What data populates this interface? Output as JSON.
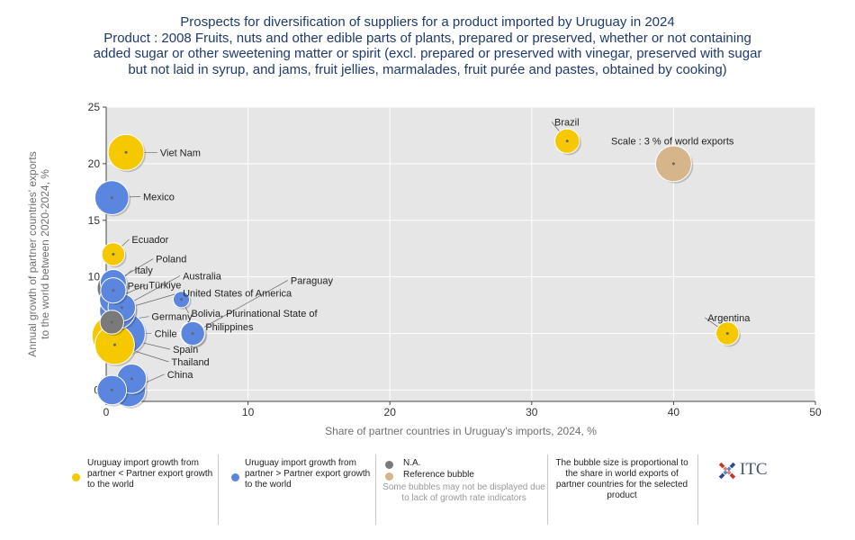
{
  "title_lines": [
    "Prospects for diversification of suppliers for a product imported by Uruguay in 2024",
    "Product : 2008 Fruits, nuts and other edible parts of plants, prepared or preserved, whether or not containing",
    "added sugar or other sweetening matter or spirit (excl. prepared or preserved with vinegar, preserved with sugar",
    "but not laid in syrup, and jams, fruit jellies, marmalades, fruit purée and pastes, obtained by cooking)"
  ],
  "colors": {
    "yellow": "#f5c800",
    "blue": "#5b86e0",
    "gray": "#7a7a7a",
    "reference": "#d6b58a",
    "plot_bg": "#e6e6e6",
    "grid": "#ffffff",
    "axis_label": "#707070"
  },
  "chart_data": {
    "type": "scatter",
    "xlabel": "Share of partner countries in Uruguay's imports, 2024, %",
    "ylabel": "Annual growth of partner countries' exports to the world between 2020-2024, %",
    "xlim": [
      0,
      50
    ],
    "ylim": [
      -1,
      25
    ],
    "x_ticks": [
      0,
      10,
      20,
      30,
      40,
      50
    ],
    "y_ticks": [
      0,
      5,
      10,
      15,
      20,
      25
    ],
    "grid": "on",
    "bubble_size_meaning": "share in world exports of partner countries for the selected product",
    "points": [
      {
        "name": "Viet Nam",
        "x": 1.4,
        "y": 21.0,
        "size": 3.0,
        "category": "yellow",
        "label": "Viet Nam",
        "label_x": 3.8,
        "label_y": 21.0
      },
      {
        "name": "Mexico",
        "x": 0.4,
        "y": 17.0,
        "size": 2.6,
        "category": "blue",
        "label": "Mexico",
        "label_x": 2.6,
        "label_y": 17.1
      },
      {
        "name": "Ecuador",
        "x": 0.5,
        "y": 12.0,
        "size": 0.9,
        "category": "yellow",
        "label": "Ecuador",
        "label_x": 1.8,
        "label_y": 13.3
      },
      {
        "name": "Poland",
        "x": 0.5,
        "y": 9.5,
        "size": 1.3,
        "category": "blue",
        "label": "Poland",
        "label_x": 3.5,
        "label_y": 11.6
      },
      {
        "name": "Italy",
        "x": 0.4,
        "y": 9.0,
        "size": 1.8,
        "category": "gray",
        "label": "Italy",
        "label_x": 2.0,
        "label_y": 10.6
      },
      {
        "name": "Peru",
        "x": 0.5,
        "y": 8.8,
        "size": 1.2,
        "category": "blue",
        "label": "Peru",
        "label_x": 1.5,
        "label_y": 9.2
      },
      {
        "name": "Türkiye",
        "x": 0.5,
        "y": 8.0,
        "size": 1.5,
        "category": "blue",
        "label": "Türkiye",
        "label_x": 3.0,
        "label_y": 9.3
      },
      {
        "name": "Australia",
        "x": 1.1,
        "y": 7.3,
        "size": 1.5,
        "category": "blue",
        "label": "Australia",
        "label_x": 5.4,
        "label_y": 10.1
      },
      {
        "name": "United States of America",
        "x": 0.8,
        "y": 7.0,
        "size": 3.0,
        "category": "blue",
        "label": "United States of America",
        "label_x": 5.4,
        "label_y": 8.6
      },
      {
        "name": "Paraguay",
        "x": 6.1,
        "y": 5.0,
        "size": 1.0,
        "category": "blue",
        "label": "Paraguay",
        "label_x": 13.0,
        "label_y": 9.7
      },
      {
        "name": "Bolivia, Plurinational State of",
        "x": 5.3,
        "y": 8.0,
        "size": 0.3,
        "category": "blue",
        "label": "Bolivia, Plurinational State of",
        "label_x": 6.0,
        "label_y": 6.8
      },
      {
        "name": "Germany",
        "x": 0.4,
        "y": 6.0,
        "size": 1.0,
        "category": "gray",
        "label": "Germany",
        "label_x": 3.2,
        "label_y": 6.5
      },
      {
        "name": "Philippines",
        "x": 6.1,
        "y": 5.0,
        "size": 1.2,
        "category": "blue",
        "label": "Philippines",
        "label_x": 7.0,
        "label_y": 5.6
      },
      {
        "name": "Chile",
        "x": 1.3,
        "y": 5.0,
        "size": 4.2,
        "category": "blue",
        "label": "Chile",
        "label_x": 3.4,
        "label_y": 5.0
      },
      {
        "name": "Spain",
        "x": 0.5,
        "y": 4.8,
        "size": 4.5,
        "category": "yellow",
        "label": "Spain",
        "label_x": 4.7,
        "label_y": 3.6
      },
      {
        "name": "Thailand",
        "x": 0.6,
        "y": 4.0,
        "size": 3.8,
        "category": "yellow",
        "label": "Thailand",
        "label_x": 4.6,
        "label_y": 2.5
      },
      {
        "name": "China",
        "x": 1.6,
        "y": 0.0,
        "size": 2.5,
        "category": "blue",
        "label": "China",
        "label_x": 4.3,
        "label_y": 1.4
      },
      {
        "name": "China-2",
        "x": 1.8,
        "y": 1.0,
        "size": 1.8,
        "category": "blue",
        "label": "",
        "label_x": 0,
        "label_y": 0
      },
      {
        "name": "Small-origin",
        "x": 0.4,
        "y": 0.0,
        "size": 1.8,
        "category": "blue",
        "label": "",
        "label_x": 0,
        "label_y": 0
      },
      {
        "name": "Brazil",
        "x": 32.5,
        "y": 22.0,
        "size": 1.1,
        "category": "yellow",
        "label": "Brazil",
        "label_x": 31.6,
        "label_y": 23.7
      },
      {
        "name": "Argentina",
        "x": 43.8,
        "y": 5.0,
        "size": 0.9,
        "category": "yellow",
        "label": "Argentina",
        "label_x": 42.4,
        "label_y": 6.4
      },
      {
        "name": "Reference",
        "x": 40.0,
        "y": 20.0,
        "size": 3.0,
        "category": "reference",
        "label": "",
        "label_x": 0,
        "label_y": 0
      }
    ],
    "annotations": [
      {
        "text": "Scale : 3 % of world exports",
        "x": 35.6,
        "y": 22.0
      }
    ]
  },
  "legend": {
    "yellow_text": "Uruguay import growth from partner < Partner export growth to the world",
    "blue_text": "Uruguay import growth from partner > Partner export growth to the world",
    "na_text": "N.A.",
    "reference_text": "Reference bubble",
    "note_text": "Some bubbles may not be displayed due to lack of growth rate indicators",
    "scale_text": "The bubble size is proportional to the share in world exports of partner countries for the selected product",
    "logo_text": "ITC"
  }
}
